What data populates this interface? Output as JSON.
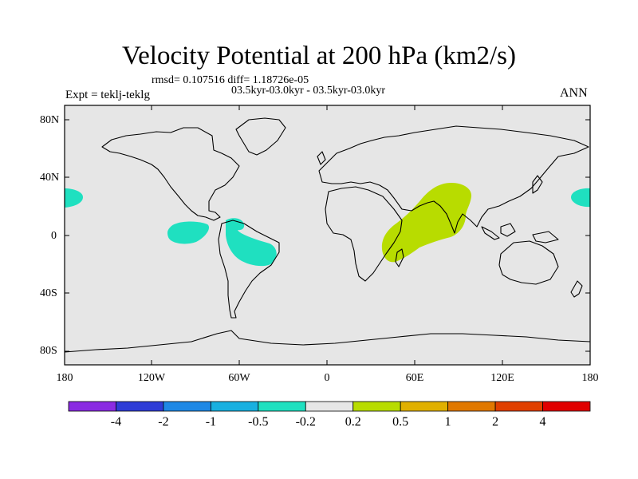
{
  "title": "Velocity Potential at 200 hPa (km2/s)",
  "stats_line": "rmsd= 0.107516 diff= 1.18726e-05",
  "period_line": "03.5kyr-03.0kyr - 03.5kyr-03.0kyr",
  "expt_label": "Expt = teklj-teklg",
  "season_label": "ANN",
  "lat_labels": [
    "80N",
    "40N",
    "0",
    "40S",
    "80S"
  ],
  "lon_labels": [
    "180",
    "120W",
    "60W",
    "0",
    "60E",
    "120E",
    "180"
  ],
  "colorbar": {
    "labels": [
      "-4",
      "-2",
      "-1",
      "-0.5",
      "-0.2",
      "0.2",
      "0.5",
      "1",
      "2",
      "4"
    ],
    "colors": [
      "#8a2be2",
      "#2e3cd6",
      "#1e88e5",
      "#18b0e0",
      "#1fe0c0",
      "#e6e6e6",
      "#b8dc00",
      "#e0b000",
      "#e07800",
      "#e04000",
      "#e00000"
    ]
  },
  "colors": {
    "ocean": "#e6e6e6",
    "negative_anomaly": "#1fe0c0",
    "positive_anomaly": "#b8dc00",
    "coast": "#000000"
  }
}
